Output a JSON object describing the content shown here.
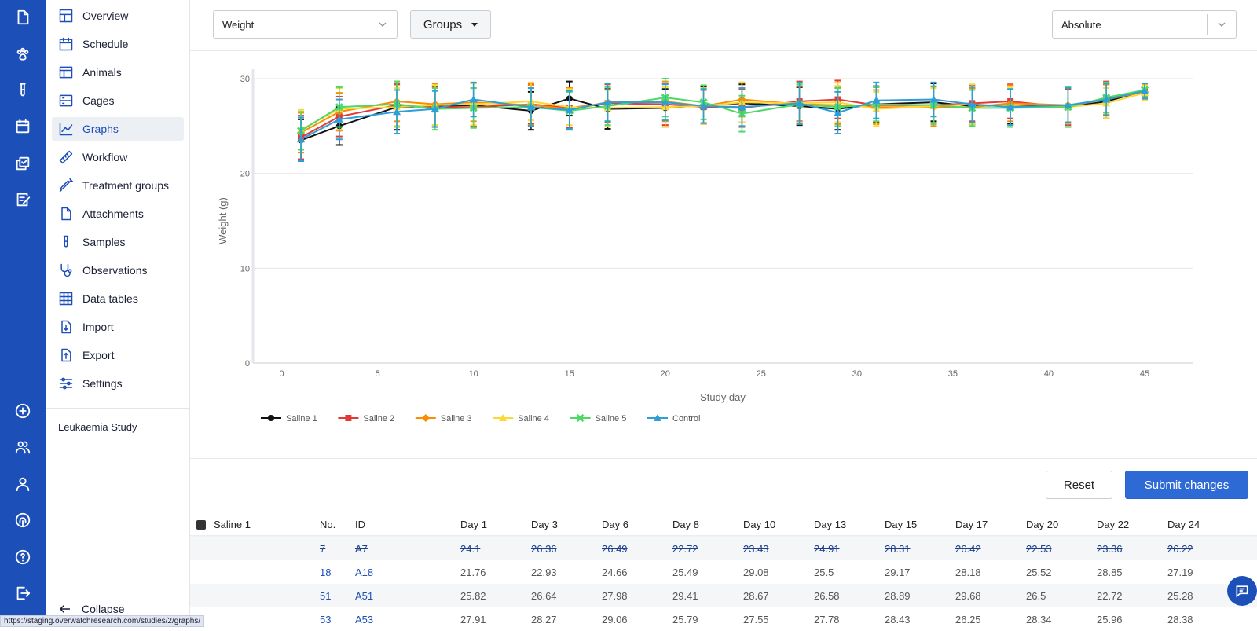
{
  "rail": {
    "icons": [
      "document-icon",
      "paw-icon",
      "test-tube-icon",
      "calendar-icon",
      "copy-icon",
      "checklist-icon",
      "add-circle-icon",
      "users-icon",
      "user-icon",
      "fingerprint-icon",
      "help-icon",
      "logout-icon"
    ]
  },
  "sidebar": {
    "items": [
      {
        "label": "Overview",
        "icon": "layout-icon"
      },
      {
        "label": "Schedule",
        "icon": "calendar-icon"
      },
      {
        "label": "Animals",
        "icon": "table-icon"
      },
      {
        "label": "Cages",
        "icon": "cage-icon"
      },
      {
        "label": "Graphs",
        "icon": "line-chart-icon",
        "active": true
      },
      {
        "label": "Workflow",
        "icon": "ruler-icon"
      },
      {
        "label": "Treatment groups",
        "icon": "syringe-icon"
      },
      {
        "label": "Attachments",
        "icon": "file-icon"
      },
      {
        "label": "Samples",
        "icon": "test-tube-icon"
      },
      {
        "label": "Observations",
        "icon": "stethoscope-icon"
      },
      {
        "label": "Data tables",
        "icon": "grid-icon"
      },
      {
        "label": "Import",
        "icon": "import-icon"
      },
      {
        "label": "Export",
        "icon": "export-icon"
      },
      {
        "label": "Settings",
        "icon": "sliders-icon"
      }
    ],
    "study_name": "Leukaemia Study",
    "collapse_label": "Collapse"
  },
  "status_url": "https://staging.overwatchresearch.com/studies/2/graphs/",
  "toolbar": {
    "measure_select": "Weight",
    "groups_label": "Groups",
    "mode_select": "Absolute"
  },
  "actions": {
    "reset_label": "Reset",
    "submit_label": "Submit changes"
  },
  "chart_data": {
    "type": "line",
    "xlabel": "Study day",
    "ylabel": "Weight (g)",
    "xlim": [
      -1.5,
      47.5
    ],
    "ylim": [
      0,
      30
    ],
    "xticks": [
      0,
      5,
      10,
      15,
      20,
      25,
      30,
      35,
      40,
      45
    ],
    "yticks": [
      0,
      10,
      20,
      30
    ],
    "grid": "horizontal",
    "legend": "bottom-left",
    "error_bars": true,
    "x": [
      1,
      3,
      6,
      8,
      10,
      13,
      15,
      17,
      20,
      22,
      24,
      27,
      29,
      31,
      34,
      36,
      38,
      41,
      43,
      45
    ],
    "series": [
      {
        "name": "Saline 1",
        "color": "#111111",
        "marker": "circle",
        "values": [
          23.5,
          25.0,
          27.0,
          27.1,
          27.2,
          26.6,
          27.9,
          26.8,
          26.9,
          27.2,
          27.4,
          27.1,
          26.8,
          27.3,
          27.5,
          27.1,
          27.2,
          27.0,
          27.6,
          28.7
        ],
        "errors": [
          2.2,
          2.0,
          2.4,
          2.2,
          2.3,
          2.0,
          1.8,
          2.1,
          2.0,
          1.9,
          2.0,
          2.0,
          2.2,
          1.9,
          2.0,
          1.9,
          2.0,
          2.1,
          1.8,
          0.8
        ]
      },
      {
        "name": "Saline 2",
        "color": "#e53935",
        "marker": "square",
        "values": [
          23.8,
          26.0,
          27.2,
          27.0,
          27.0,
          27.3,
          26.9,
          27.4,
          27.3,
          27.0,
          26.9,
          27.6,
          27.8,
          27.2,
          27.2,
          27.4,
          27.6,
          27.0,
          27.9,
          28.7
        ],
        "errors": [
          2.3,
          2.1,
          2.2,
          2.1,
          2.0,
          2.1,
          2.1,
          2.0,
          2.2,
          1.8,
          2.0,
          2.1,
          2.0,
          1.9,
          1.9,
          1.9,
          1.8,
          1.9,
          1.8,
          0.8
        ]
      },
      {
        "name": "Saline 3",
        "color": "#fb8c00",
        "marker": "diamond",
        "values": [
          24.3,
          26.5,
          27.6,
          27.3,
          27.5,
          27.2,
          26.8,
          27.5,
          27.6,
          27.1,
          27.8,
          27.3,
          27.2,
          27.0,
          27.0,
          27.0,
          27.4,
          27.2,
          27.8,
          28.6
        ],
        "errors": [
          2.1,
          2.0,
          2.1,
          2.2,
          2.0,
          2.1,
          2.2,
          2.0,
          2.1,
          1.9,
          1.8,
          1.9,
          2.0,
          1.8,
          2.0,
          2.0,
          1.9,
          1.9,
          1.6,
          0.8
        ]
      },
      {
        "name": "Saline 4",
        "color": "#fdd835",
        "marker": "triangle",
        "values": [
          24.6,
          26.8,
          27.0,
          27.2,
          27.3,
          27.6,
          27.0,
          26.9,
          27.0,
          27.1,
          27.5,
          27.4,
          27.5,
          26.8,
          27.1,
          27.3,
          27.1,
          27.0,
          27.4,
          28.5
        ],
        "errors": [
          2.1,
          2.2,
          2.0,
          2.1,
          2.2,
          2.0,
          1.9,
          1.9,
          2.1,
          1.9,
          2.1,
          2.0,
          2.1,
          1.8,
          1.9,
          2.1,
          2.0,
          2.1,
          1.6,
          0.8
        ]
      },
      {
        "name": "Saline 5",
        "color": "#4cd964",
        "marker": "x",
        "values": [
          24.5,
          27.0,
          27.3,
          26.8,
          26.9,
          27.0,
          26.6,
          27.1,
          28.0,
          27.5,
          26.3,
          27.3,
          27.0,
          27.3,
          27.2,
          26.9,
          26.9,
          27.0,
          28.0,
          28.8
        ],
        "errors": [
          2.0,
          2.1,
          2.4,
          2.2,
          2.1,
          2.0,
          2.0,
          2.0,
          2.0,
          1.8,
          1.9,
          2.1,
          2.0,
          1.8,
          2.0,
          1.9,
          2.0,
          2.1,
          1.6,
          0.7
        ]
      },
      {
        "name": "Control",
        "color": "#2c9fd9",
        "marker": "triangle",
        "values": [
          23.6,
          25.7,
          26.5,
          26.8,
          27.8,
          27.0,
          26.7,
          27.5,
          27.5,
          27.1,
          27.0,
          27.4,
          26.4,
          27.7,
          27.8,
          27.3,
          27.0,
          27.2,
          27.8,
          28.7
        ],
        "errors": [
          2.3,
          2.1,
          2.3,
          1.9,
          1.8,
          2.0,
          2.0,
          2.0,
          1.9,
          1.8,
          2.0,
          2.2,
          2.2,
          1.9,
          1.8,
          1.9,
          1.9,
          1.8,
          1.7,
          0.8
        ]
      }
    ]
  },
  "table": {
    "group_label": "Saline 1",
    "headers": [
      "No.",
      "ID",
      "Day 1",
      "Day 3",
      "Day 6",
      "Day 8",
      "Day 10",
      "Day 13",
      "Day 15",
      "Day 17",
      "Day 20",
      "Day 22",
      "Day 24"
    ],
    "rows": [
      {
        "no": "7",
        "id": "A7",
        "struck": true,
        "values": [
          "24.1",
          "26.36",
          "26.49",
          "22.72",
          "23.43",
          "24.91",
          "28.31",
          "26.42",
          "22.53",
          "23.36",
          "26.22"
        ]
      },
      {
        "no": "18",
        "id": "A18",
        "values": [
          "21.76",
          "22.93",
          "24.66",
          "25.49",
          "29.08",
          "25.5",
          "29.17",
          "28.18",
          "25.52",
          "28.85",
          "27.19"
        ]
      },
      {
        "no": "51",
        "id": "A51",
        "struck_cells": [
          1
        ],
        "values": [
          "25.82",
          "26.64",
          "27.98",
          "29.41",
          "28.67",
          "26.58",
          "28.89",
          "29.68",
          "26.5",
          "22.72",
          "25.28"
        ]
      },
      {
        "no": "53",
        "id": "A53",
        "values": [
          "27.91",
          "28.27",
          "29.06",
          "25.79",
          "27.55",
          "27.78",
          "28.43",
          "26.25",
          "28.34",
          "25.96",
          "28.38"
        ]
      }
    ]
  }
}
